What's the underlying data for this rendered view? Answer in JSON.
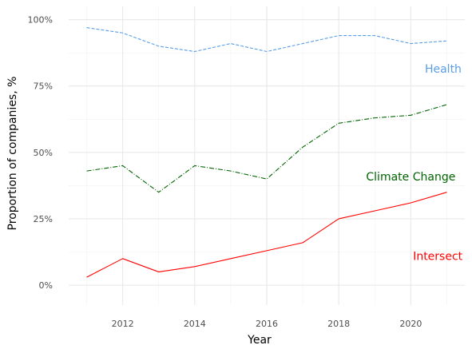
{
  "chart_data": {
    "type": "line",
    "title": "",
    "xlabel": "Year",
    "ylabel": "Proportion of companies, %",
    "xlim": [
      2010.5,
      2021.5
    ],
    "ylim": [
      -7.5,
      105
    ],
    "x_ticks": [
      2012,
      2014,
      2016,
      2018,
      2020
    ],
    "x_tick_labels": [
      "2012",
      "2014",
      "2016",
      "2018",
      "2020"
    ],
    "y_ticks": [
      0,
      25,
      50,
      75,
      100
    ],
    "y_tick_labels": [
      "0%",
      "25%",
      "50%",
      "75%",
      "100%"
    ],
    "grid": true,
    "legend": "none",
    "x": [
      2011,
      2012,
      2013,
      2014,
      2015,
      2016,
      2017,
      2018,
      2019,
      2020,
      2021
    ],
    "series": [
      {
        "name": "Health",
        "values": [
          97,
          95,
          90,
          88,
          91,
          88,
          91,
          94,
          94,
          91,
          92
        ],
        "color": "#5a9ee8",
        "line_style": "dashed",
        "label_at": [
          2020.9,
          80
        ]
      },
      {
        "name": "Climate Change",
        "values": [
          43,
          45,
          35,
          45,
          43,
          40,
          52,
          61,
          63,
          64,
          68
        ],
        "color": "#006400",
        "line_style": "dashdot",
        "label_at": [
          2020.0,
          39.5
        ]
      },
      {
        "name": "Intersect",
        "values": [
          3,
          10,
          5,
          7,
          10,
          13,
          16,
          25,
          28,
          31,
          35
        ],
        "color": "#ff0000",
        "line_style": "solid",
        "label_at": [
          2020.75,
          9.5
        ]
      }
    ]
  }
}
